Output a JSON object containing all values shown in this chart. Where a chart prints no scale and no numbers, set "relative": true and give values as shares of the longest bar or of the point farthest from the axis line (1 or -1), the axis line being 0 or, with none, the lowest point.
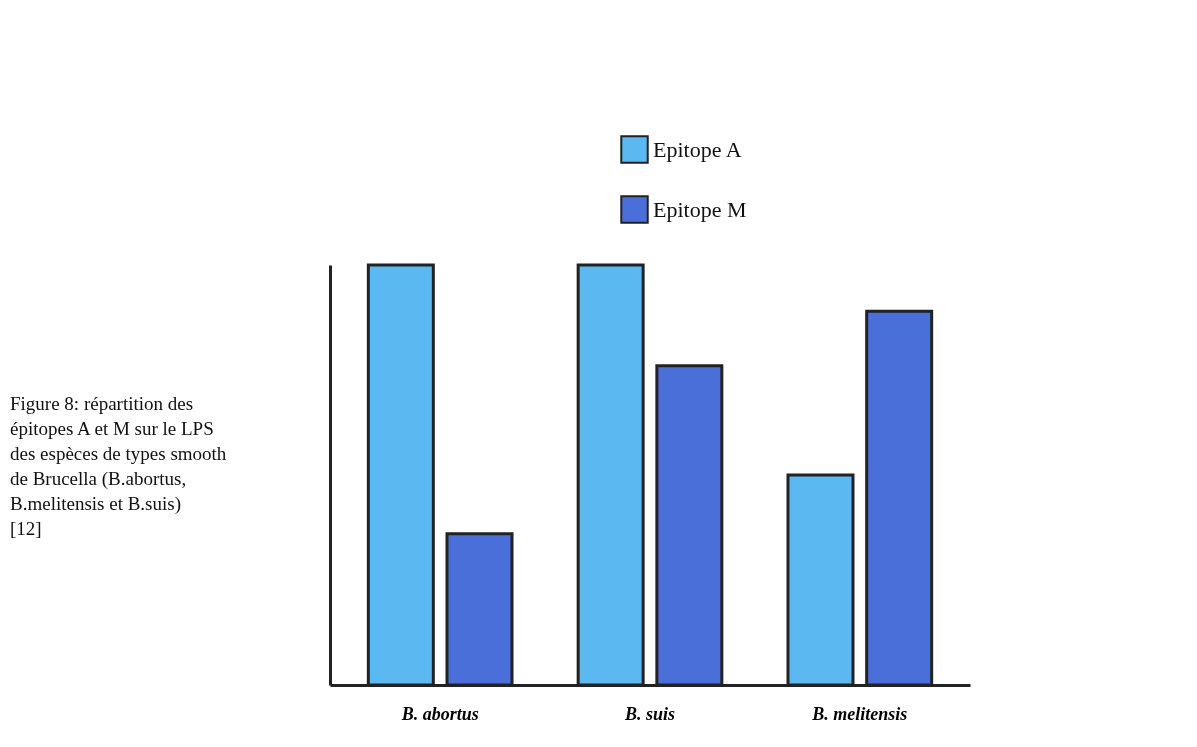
{
  "chart_data": {
    "type": "bar",
    "relative": true,
    "categories": [
      "B. abortus",
      "B. suis",
      "B. melitensis"
    ],
    "series": [
      {
        "name": "Epitope A",
        "color": "#5bb8f0",
        "values": [
          1,
          1,
          0.5
        ]
      },
      {
        "name": "Epitope M",
        "color": "#4a6fd8",
        "values": [
          0.36,
          0.76,
          0.89
        ]
      }
    ],
    "legend": "top right",
    "grid": false,
    "annotations": [
      "Figure 8: répartition des épitopes A et M sur le LPS des espèces de types smooth de Brucella (B.abortus, B.melitensis et B.suis) [12]"
    ]
  }
}
